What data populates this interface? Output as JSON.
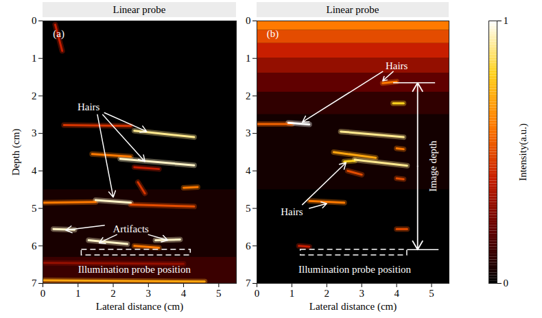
{
  "chart_data": {
    "type": "heatmap",
    "xlim": [
      0,
      5.5
    ],
    "xticks": [
      0,
      1,
      2,
      3,
      4,
      5
    ],
    "ylim": [
      0,
      7
    ],
    "yticks": [
      0,
      1,
      2,
      3,
      4,
      5,
      6,
      7
    ],
    "colorbar": {
      "range": [
        0,
        1
      ],
      "ticks": [
        0,
        1
      ],
      "label": "Intensity(a.u.)"
    },
    "background_intensity": 0,
    "panels": [
      {
        "letter": "(a)",
        "letter_x": 0.45,
        "letter_y": 0.35,
        "header": "Linear probe",
        "xlabel": "Lateral distance (cm)",
        "ylabel": "Depth (cm)",
        "bands": [
          {
            "y1": 4.5,
            "y2": 6.3,
            "intensity": 0.05
          },
          {
            "y1": 6.3,
            "y2": 7,
            "intensity": 0.12
          }
        ],
        "streaks": [
          {
            "x1": 0.35,
            "y1": 0.1,
            "x2": 0.55,
            "y2": 0.8,
            "intensity": 0.4
          },
          {
            "x1": 0.6,
            "y1": 2.78,
            "x2": 2.5,
            "y2": 2.8,
            "intensity": 0.45
          },
          {
            "x1": 2.6,
            "y1": 2.93,
            "x2": 4.3,
            "y2": 3.1,
            "intensity": 0.9
          },
          {
            "x1": 1.4,
            "y1": 3.55,
            "x2": 2.5,
            "y2": 3.62,
            "intensity": 0.6
          },
          {
            "x1": 2.2,
            "y1": 3.68,
            "x2": 4.3,
            "y2": 3.85,
            "intensity": 0.95
          },
          {
            "x1": 2.6,
            "y1": 3.9,
            "x2": 3.3,
            "y2": 3.95,
            "intensity": 0.4
          },
          {
            "x1": 0,
            "y1": 4.85,
            "x2": 1.5,
            "y2": 4.83,
            "intensity": 0.6
          },
          {
            "x1": 1.5,
            "y1": 4.78,
            "x2": 2.5,
            "y2": 4.85,
            "intensity": 0.95
          },
          {
            "x1": 2.5,
            "y1": 4.9,
            "x2": 4.3,
            "y2": 4.95,
            "intensity": 0.5
          },
          {
            "x1": 4.0,
            "y1": 4.45,
            "x2": 4.4,
            "y2": 4.43,
            "intensity": 0.6
          },
          {
            "x1": 2.7,
            "y1": 4.3,
            "x2": 2.9,
            "y2": 4.6,
            "intensity": 0.45
          },
          {
            "x1": 0.3,
            "y1": 5.55,
            "x2": 0.9,
            "y2": 5.57,
            "intensity": 0.95
          },
          {
            "x1": 1.3,
            "y1": 5.85,
            "x2": 2.4,
            "y2": 5.95,
            "intensity": 0.95
          },
          {
            "x1": 3.2,
            "y1": 5.85,
            "x2": 3.9,
            "y2": 5.83,
            "intensity": 0.95
          },
          {
            "x1": 2.6,
            "y1": 6.0,
            "x2": 3.3,
            "y2": 6.05,
            "intensity": 0.6
          },
          {
            "x1": 0,
            "y1": 6.45,
            "x2": 4.0,
            "y2": 6.48,
            "intensity": 0.3
          },
          {
            "x1": 0,
            "y1": 6.92,
            "x2": 4.6,
            "y2": 6.95,
            "intensity": 0.7
          }
        ],
        "probe": {
          "x1": 1.1,
          "x2": 4.2,
          "y1": 6.1,
          "y2": 6.25
        },
        "annotations": [
          {
            "text": "Hairs",
            "x": 1.3,
            "y": 2.3,
            "arrows": [
              {
                "x1": 1.75,
                "y1": 2.45,
                "x2": 2.95,
                "y2": 2.95
              },
              {
                "x1": 1.7,
                "y1": 2.5,
                "x2": 2.9,
                "y2": 3.75
              },
              {
                "x1": 1.55,
                "y1": 2.5,
                "x2": 2.0,
                "y2": 4.7
              }
            ]
          },
          {
            "text": "Artifacts",
            "x": 2.5,
            "y": 5.55,
            "arrows": [
              {
                "x1": 1.75,
                "y1": 5.45,
                "x2": 0.65,
                "y2": 5.58
              },
              {
                "x1": 2.1,
                "y1": 5.7,
                "x2": 1.6,
                "y2": 5.92
              },
              {
                "x1": 3.0,
                "y1": 5.7,
                "x2": 3.55,
                "y2": 5.85
              }
            ]
          },
          {
            "text": "Illumination probe position",
            "x": 2.6,
            "y": 6.62,
            "arrows": []
          }
        ]
      },
      {
        "letter": "(b)",
        "letter_x": 0.45,
        "letter_y": 0.35,
        "header": "Linear probe",
        "xlabel": "Lateral distance (cm)",
        "bands": [
          {
            "y1": 0,
            "y2": 0.25,
            "intensity": 0.6
          },
          {
            "y1": 0.25,
            "y2": 0.6,
            "intensity": 0.5
          },
          {
            "y1": 0.6,
            "y2": 1.0,
            "intensity": 0.4
          },
          {
            "y1": 1.0,
            "y2": 1.4,
            "intensity": 0.3
          },
          {
            "y1": 1.4,
            "y2": 1.9,
            "intensity": 0.2
          },
          {
            "y1": 1.9,
            "y2": 2.5,
            "intensity": 0.1
          },
          {
            "y1": 2.5,
            "y2": 4.5,
            "intensity": 0.04
          }
        ],
        "streaks": [
          {
            "x1": 0,
            "y1": 2.75,
            "x2": 1.0,
            "y2": 2.75,
            "intensity": 0.55
          },
          {
            "x1": 0.9,
            "y1": 2.72,
            "x2": 1.5,
            "y2": 2.76,
            "intensity": 1.0
          },
          {
            "x1": 2.4,
            "y1": 2.95,
            "x2": 4.2,
            "y2": 3.1,
            "intensity": 0.9
          },
          {
            "x1": 3.6,
            "y1": 1.66,
            "x2": 4.0,
            "y2": 1.62,
            "intensity": 0.6
          },
          {
            "x1": 3.9,
            "y1": 2.2,
            "x2": 4.2,
            "y2": 2.2,
            "intensity": 0.8
          },
          {
            "x1": 2.2,
            "y1": 3.5,
            "x2": 3.4,
            "y2": 3.65,
            "intensity": 0.7
          },
          {
            "x1": 2.5,
            "y1": 3.75,
            "x2": 2.8,
            "y2": 3.73,
            "intensity": 0.8
          },
          {
            "x1": 2.8,
            "y1": 3.7,
            "x2": 4.3,
            "y2": 3.86,
            "intensity": 0.9
          },
          {
            "x1": 2.6,
            "y1": 4.0,
            "x2": 3.0,
            "y2": 4.1,
            "intensity": 0.5
          },
          {
            "x1": 4.0,
            "y1": 3.4,
            "x2": 4.2,
            "y2": 3.42,
            "intensity": 0.6
          },
          {
            "x1": 4.0,
            "y1": 4.2,
            "x2": 4.2,
            "y2": 4.22,
            "intensity": 0.5
          },
          {
            "x1": 1.5,
            "y1": 4.8,
            "x2": 2.5,
            "y2": 4.85,
            "intensity": 0.6
          },
          {
            "x1": 4.0,
            "y1": 5.55,
            "x2": 4.3,
            "y2": 5.55,
            "intensity": 0.5
          },
          {
            "x1": 1.2,
            "y1": 6.0,
            "x2": 1.5,
            "y2": 6.02,
            "intensity": 0.4
          }
        ],
        "probe": {
          "x1": 1.25,
          "x2": 4.3,
          "y1": 6.1,
          "y2": 6.25
        },
        "annotations": [
          {
            "text": "Hairs",
            "x": 4.0,
            "y": 1.2,
            "arrows": [
              {
                "x1": 3.9,
                "y1": 1.35,
                "x2": 3.6,
                "y2": 1.6
              },
              {
                "x1": 3.6,
                "y1": 1.35,
                "x2": 1.3,
                "y2": 2.7
              }
            ]
          },
          {
            "text": "Hairs",
            "x": 1.0,
            "y": 5.1,
            "arrows": [
              {
                "x1": 1.3,
                "y1": 4.9,
                "x2": 2.55,
                "y2": 3.78
              },
              {
                "x1": 1.5,
                "y1": 5.0,
                "x2": 2.0,
                "y2": 4.87
              }
            ]
          },
          {
            "text": "Illumination probe position",
            "x": 2.8,
            "y": 6.62,
            "arrows": []
          }
        ],
        "image_depth": {
          "text": "Image depth",
          "x": 4.6,
          "y1": 1.65,
          "y2": 6.1,
          "text_x": 5.05,
          "ticks": [
            {
              "y": 1.65,
              "x1": 3.9,
              "x2": 5.1
            },
            {
              "y": 6.1,
              "x1": 4.3,
              "x2": 5.2
            }
          ]
        }
      }
    ]
  }
}
